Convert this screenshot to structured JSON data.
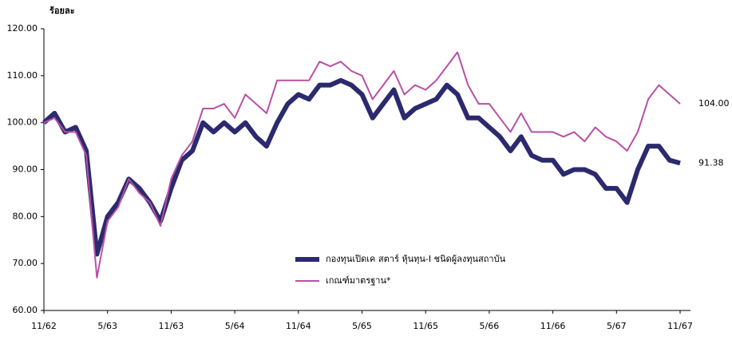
{
  "chart_data": {
    "type": "line",
    "y_label": "ร้อยละ",
    "categories": [
      "11/62",
      null,
      null,
      null,
      null,
      null,
      "5/63",
      null,
      null,
      null,
      null,
      null,
      "11/63",
      null,
      null,
      null,
      null,
      null,
      "5/64",
      null,
      null,
      null,
      null,
      null,
      "11/64",
      null,
      null,
      null,
      null,
      null,
      "5/65",
      null,
      null,
      null,
      null,
      null,
      "11/65",
      null,
      null,
      null,
      null,
      null,
      "5/66",
      null,
      null,
      null,
      null,
      null,
      "11/66",
      null,
      null,
      null,
      null,
      null,
      "5/67",
      null,
      null,
      null,
      null,
      null,
      "11/67"
    ],
    "series": [
      {
        "name": "กองทุนเปิดเค สตาร์ หุ้นทุน-I ชนิดผู้ลงทุนสถาบัน",
        "color": "#2b2a6e",
        "values": [
          100,
          102,
          98,
          99,
          94,
          72,
          80,
          83,
          88,
          86,
          83,
          79,
          86,
          92,
          94,
          100,
          98,
          100,
          98,
          100,
          97,
          95,
          100,
          104,
          106,
          105,
          108,
          108,
          109,
          108,
          106,
          101,
          104,
          107,
          101,
          103,
          104,
          105,
          108,
          106,
          101,
          101,
          99,
          97,
          94,
          97,
          93,
          92,
          92,
          89,
          90,
          90,
          89,
          86,
          86,
          83,
          90,
          95,
          95,
          92,
          91.38
        ],
        "end_label": "91.38"
      },
      {
        "name": "เกณฑ์มาตรฐาน*",
        "color": "#b94fa6",
        "values": [
          100,
          101,
          98,
          98,
          93,
          67,
          79,
          82,
          88,
          85,
          83,
          78,
          88,
          93,
          96,
          103,
          103,
          104,
          101,
          106,
          104,
          102,
          109,
          109,
          109,
          109,
          113,
          112,
          113,
          111,
          110,
          105,
          108,
          111,
          106,
          108,
          107,
          109,
          112,
          115,
          108,
          104,
          104,
          101,
          98,
          102,
          98,
          98,
          98,
          97,
          98,
          96,
          99,
          97,
          96,
          94,
          98,
          105,
          108,
          106,
          104
        ],
        "end_label": "104.00"
      }
    ],
    "ylim": [
      60,
      120
    ],
    "yticks": [
      {
        "value": 60,
        "label": "60.00"
      },
      {
        "value": 70,
        "label": "70.00"
      },
      {
        "value": 80,
        "label": "80.00"
      },
      {
        "value": 90,
        "label": "90.00"
      },
      {
        "value": 100,
        "label": "100.00"
      },
      {
        "value": 110,
        "label": "110.00"
      },
      {
        "value": 120,
        "label": "120.00"
      }
    ],
    "grid": false
  }
}
